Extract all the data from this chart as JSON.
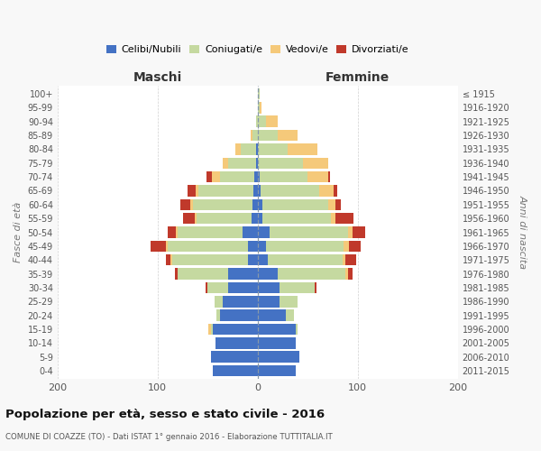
{
  "age_groups": [
    "0-4",
    "5-9",
    "10-14",
    "15-19",
    "20-24",
    "25-29",
    "30-34",
    "35-39",
    "40-44",
    "45-49",
    "50-54",
    "55-59",
    "60-64",
    "65-69",
    "70-74",
    "75-79",
    "80-84",
    "85-89",
    "90-94",
    "95-99",
    "100+"
  ],
  "birth_years": [
    "2011-2015",
    "2006-2010",
    "2001-2005",
    "1996-2000",
    "1991-1995",
    "1986-1990",
    "1981-1985",
    "1976-1980",
    "1971-1975",
    "1966-1970",
    "1961-1965",
    "1956-1960",
    "1951-1955",
    "1946-1950",
    "1941-1945",
    "1936-1940",
    "1931-1935",
    "1926-1930",
    "1921-1925",
    "1916-1920",
    "≤ 1915"
  ],
  "male": {
    "celibe": [
      45,
      47,
      42,
      45,
      38,
      35,
      30,
      30,
      10,
      10,
      15,
      6,
      5,
      4,
      3,
      2,
      2,
      0,
      0,
      0,
      0
    ],
    "coniugato": [
      0,
      0,
      0,
      2,
      3,
      8,
      20,
      50,
      75,
      80,
      65,
      55,
      60,
      55,
      35,
      28,
      15,
      5,
      2,
      0,
      0
    ],
    "vedovo": [
      0,
      0,
      0,
      2,
      0,
      0,
      0,
      0,
      2,
      2,
      2,
      2,
      2,
      3,
      8,
      5,
      5,
      2,
      0,
      0,
      0
    ],
    "divorziato": [
      0,
      0,
      0,
      0,
      0,
      0,
      2,
      3,
      5,
      15,
      8,
      12,
      10,
      8,
      5,
      0,
      0,
      0,
      0,
      0,
      0
    ]
  },
  "female": {
    "nubile": [
      38,
      42,
      38,
      38,
      28,
      22,
      22,
      20,
      10,
      8,
      12,
      5,
      5,
      3,
      2,
      0,
      0,
      0,
      0,
      0,
      0
    ],
    "coniugata": [
      0,
      0,
      0,
      2,
      8,
      18,
      35,
      68,
      75,
      78,
      78,
      68,
      65,
      58,
      48,
      45,
      30,
      20,
      8,
      2,
      2
    ],
    "vedova": [
      0,
      0,
      0,
      0,
      0,
      0,
      0,
      2,
      3,
      5,
      5,
      5,
      8,
      15,
      20,
      25,
      30,
      20,
      12,
      2,
      0
    ],
    "divorziata": [
      0,
      0,
      0,
      0,
      0,
      0,
      2,
      5,
      10,
      12,
      12,
      18,
      5,
      3,
      2,
      0,
      0,
      0,
      0,
      0,
      0
    ]
  },
  "colors": {
    "celibe": "#4472c4",
    "coniugato": "#c5d9a0",
    "vedovo": "#f5c97a",
    "divorziato": "#c0392b"
  },
  "xlim": 200,
  "title": "Popolazione per età, sesso e stato civile - 2016",
  "subtitle": "COMUNE DI COAZZE (TO) - Dati ISTAT 1° gennaio 2016 - Elaborazione TUTTITALIA.IT",
  "xlabel_left": "Maschi",
  "xlabel_right": "Femmine",
  "ylabel_left": "Fasce di età",
  "ylabel_right": "Anni di nascita",
  "legend_labels": [
    "Celibi/Nubili",
    "Coniugati/e",
    "Vedovi/e",
    "Divorziati/e"
  ],
  "bg_color": "#f8f8f8",
  "plot_bg_color": "#ffffff"
}
